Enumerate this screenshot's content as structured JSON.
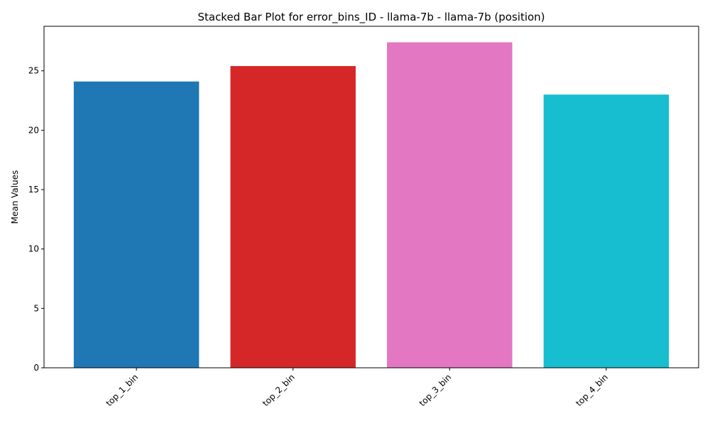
{
  "chart_data": {
    "type": "bar",
    "title": "Stacked Bar Plot for error_bins_ID - llama-7b - llama-7b (position)",
    "xlabel": "",
    "ylabel": "Mean Values",
    "categories": [
      "top_1_bin",
      "top_2_bin",
      "top_3_bin",
      "top_4_bin"
    ],
    "values": [
      24.1,
      25.4,
      27.4,
      23.0
    ],
    "colors": [
      "#1f77b4",
      "#d62728",
      "#e377c2",
      "#17becf"
    ],
    "ylim": [
      0,
      28.75
    ],
    "yticks": [
      0,
      5,
      10,
      15,
      20,
      25
    ],
    "grid": false,
    "legend": "none"
  }
}
